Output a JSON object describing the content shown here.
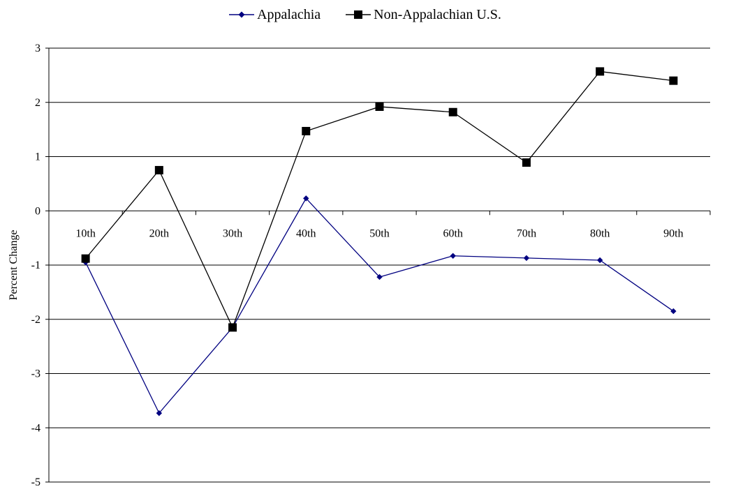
{
  "chart_data": {
    "type": "line",
    "categories": [
      "10th",
      "20th",
      "30th",
      "40th",
      "50th",
      "60th",
      "70th",
      "80th",
      "90th"
    ],
    "series": [
      {
        "name": "Appalachia",
        "color": "#000080",
        "marker": "diamond",
        "values": [
          -0.95,
          -3.73,
          -2.15,
          0.23,
          -1.22,
          -0.83,
          -0.87,
          -0.91,
          -1.85
        ]
      },
      {
        "name": "Non-Appalachian U.S.",
        "color": "#000000",
        "marker": "square",
        "values": [
          -0.88,
          0.75,
          -2.15,
          1.47,
          1.92,
          1.82,
          0.89,
          2.57,
          2.4
        ]
      }
    ],
    "ylabel": "Percent Change",
    "xlabel": "",
    "ylim": [
      -5,
      3
    ],
    "yticks": [
      3,
      2,
      1,
      0,
      -1,
      -2,
      -3,
      -4,
      -5
    ],
    "grid": true,
    "legend_position": "top-center"
  }
}
